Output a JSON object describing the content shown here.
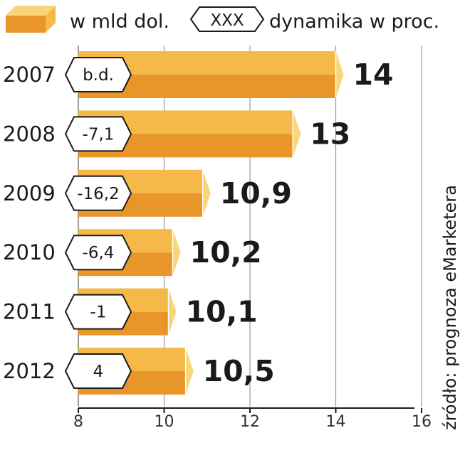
{
  "legend": {
    "value_label": "w mld dol.",
    "badge_label": "XXX",
    "dynamics_label": "dynamika w proc."
  },
  "source": "źródło: prognoza eMarketera",
  "chart_data": {
    "type": "bar",
    "orientation": "horizontal",
    "categories": [
      "2007",
      "2008",
      "2009",
      "2010",
      "2011",
      "2012"
    ],
    "values": [
      14,
      13,
      10.9,
      10.2,
      10.1,
      10.5
    ],
    "value_labels": [
      "14",
      "13",
      "10,9",
      "10,2",
      "10,1",
      "10,5"
    ],
    "dynamics": [
      "b.d.",
      "-7,1",
      "-16,2",
      "-6,4",
      "-1",
      "4"
    ],
    "xlim": [
      8,
      16
    ],
    "xticks": [
      8,
      10,
      12,
      14,
      16
    ],
    "grid": true,
    "colors": {
      "bar_top": "#f5b94a",
      "bar_bottom": "#e8952a",
      "bar_cap": "#f9d478",
      "grid": "#999999",
      "text": "#1a1a1a"
    }
  }
}
